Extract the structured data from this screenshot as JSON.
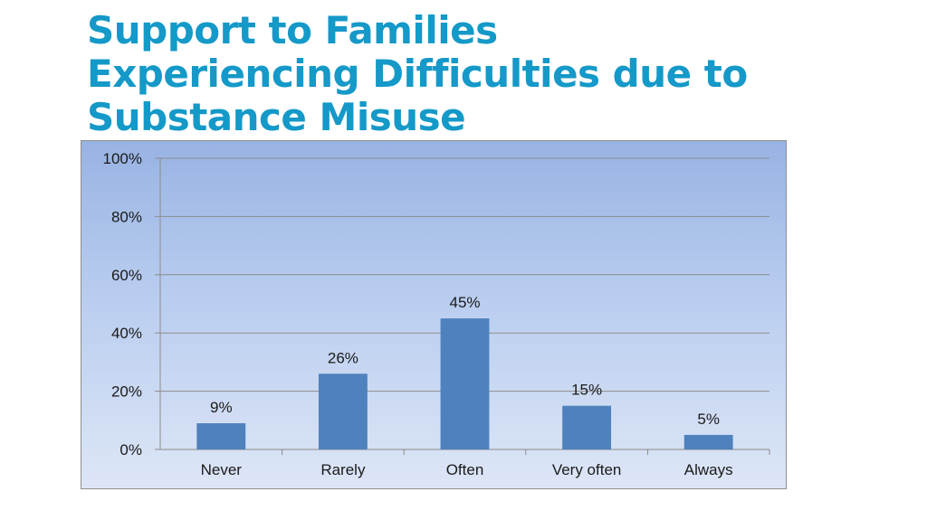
{
  "slide": {
    "title_lines": [
      "Support to Families",
      "Experiencing Difficulties due to",
      "Substance Misuse"
    ]
  },
  "chart_data": {
    "type": "bar",
    "categories": [
      "Never",
      "Rarely",
      "Often",
      "Very often",
      "Always"
    ],
    "values": [
      9,
      26,
      45,
      15,
      5
    ],
    "data_labels": [
      "9%",
      "26%",
      "45%",
      "15%",
      "5%"
    ],
    "ylim": [
      0,
      100
    ],
    "yticks": [
      0,
      20,
      40,
      60,
      80,
      100
    ],
    "ytick_labels": [
      "0%",
      "20%",
      "40%",
      "60%",
      "80%",
      "100%"
    ],
    "title": "",
    "xlabel": "",
    "ylabel": "",
    "grid": true,
    "legend": "none",
    "colors": {
      "bar": "#4f81bd",
      "grid": "#8c8c8c",
      "axis": "#8c8c8c",
      "title": "#1499c8"
    }
  }
}
